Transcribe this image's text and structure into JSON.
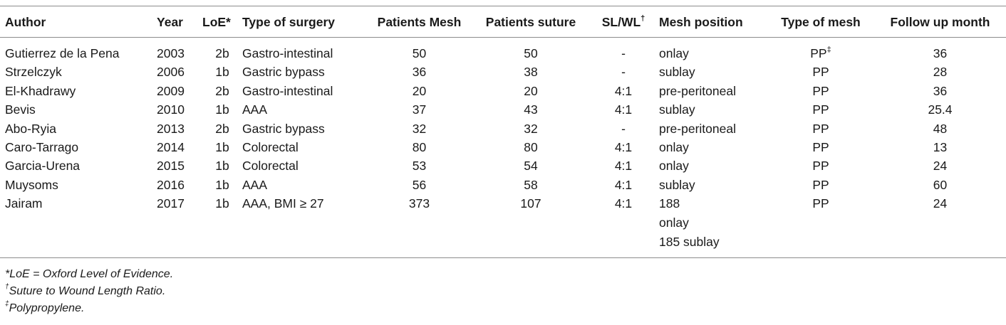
{
  "header": {
    "author": "Author",
    "year": "Year",
    "loe": "LoE*",
    "type_of_surgery": "Type of surgery",
    "patients_mesh": "Patients Mesh",
    "patients_suture": "Patients suture",
    "sl_wl": "SL/WL",
    "sl_wl_mark": "†",
    "mesh_position": "Mesh position",
    "type_of_mesh": "Type of mesh",
    "follow_up": "Follow up month"
  },
  "rows": [
    {
      "author": "Gutierrez de la Pena",
      "year": "2003",
      "loe": "2b",
      "surgery": "Gastro-intestinal",
      "mesh": "50",
      "suture": "50",
      "slwl": "-",
      "position": "onlay",
      "mesh_type": "PP",
      "mesh_type_mark": "‡",
      "follow": "36"
    },
    {
      "author": "Strzelczyk",
      "year": "2006",
      "loe": "1b",
      "surgery": "Gastric bypass",
      "mesh": "36",
      "suture": "38",
      "slwl": "-",
      "position": "sublay",
      "mesh_type": "PP",
      "follow": "28"
    },
    {
      "author": "El-Khadrawy",
      "year": "2009",
      "loe": "2b",
      "surgery": "Gastro-intestinal",
      "mesh": "20",
      "suture": "20",
      "slwl": "4:1",
      "position": "pre-peritoneal",
      "mesh_type": "PP",
      "follow": "36"
    },
    {
      "author": "Bevis",
      "year": "2010",
      "loe": "1b",
      "surgery": "AAA",
      "mesh": "37",
      "suture": "43",
      "slwl": "4:1",
      "position": "sublay",
      "mesh_type": "PP",
      "follow": "25.4"
    },
    {
      "author": "Abo-Ryia",
      "year": "2013",
      "loe": "2b",
      "surgery": "Gastric bypass",
      "mesh": "32",
      "suture": "32",
      "slwl": "-",
      "position": "pre-peritoneal",
      "mesh_type": "PP",
      "follow": "48"
    },
    {
      "author": "Caro-Tarrago",
      "year": "2014",
      "loe": "1b",
      "surgery": "Colorectal",
      "mesh": "80",
      "suture": "80",
      "slwl": "4:1",
      "position": "onlay",
      "mesh_type": "PP",
      "follow": "13"
    },
    {
      "author": "Garcia-Urena",
      "year": "2015",
      "loe": "1b",
      "surgery": "Colorectal",
      "mesh": "53",
      "suture": "54",
      "slwl": "4:1",
      "position": "onlay",
      "mesh_type": "PP",
      "follow": "24"
    },
    {
      "author": "Muysoms",
      "year": "2016",
      "loe": "1b",
      "surgery": "AAA",
      "mesh": "56",
      "suture": "58",
      "slwl": "4:1",
      "position": "sublay",
      "mesh_type": "PP",
      "follow": "60"
    },
    {
      "author": "Jairam",
      "year": "2017",
      "loe": "1b",
      "surgery": "AAA, BMI ≥ 27",
      "mesh": "373",
      "suture": "107",
      "slwl": "4:1",
      "position_lines": [
        "188",
        "onlay",
        "185 sublay"
      ],
      "mesh_type": "PP",
      "follow": "24"
    }
  ],
  "footnotes": {
    "loe": "*LoE = Oxford Level of Evidence.",
    "slwl_mark": "†",
    "slwl": "Suture to Wound Length Ratio.",
    "pp_mark": "‡",
    "pp": "Polypropylene."
  }
}
